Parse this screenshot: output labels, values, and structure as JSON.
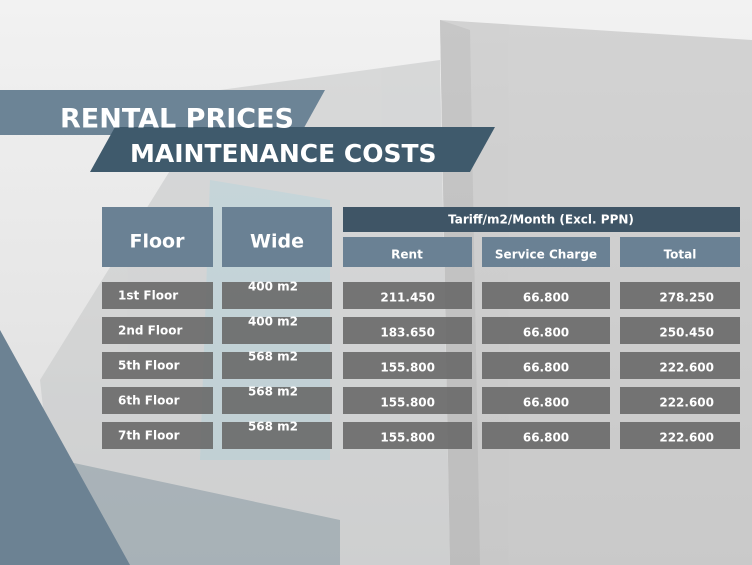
{
  "header": {
    "title": "RENTAL PRICES",
    "subtitle": "MAINTENANCE COSTS"
  },
  "table": {
    "columns": {
      "floor": "Floor",
      "wide": "Wide",
      "tariff": "Tariff/m2/Month (Excl. PPN)",
      "rent": "Rent",
      "service": "Service Charge",
      "total": "Total"
    },
    "rows": [
      [
        "1st Floor",
        "400 m2",
        "211.450",
        "66.800",
        "278.250"
      ],
      [
        "2nd Floor",
        "400 m2",
        "183.650",
        "66.800",
        "250.450"
      ],
      [
        "5th Floor",
        "568 m2",
        "155.800",
        "66.800",
        "222.600"
      ],
      [
        "6th Floor",
        "568 m2",
        "155.800",
        "66.800",
        "222.600"
      ],
      [
        "7th Floor",
        "568 m2",
        "155.800",
        "66.800",
        "222.600"
      ]
    ]
  }
}
